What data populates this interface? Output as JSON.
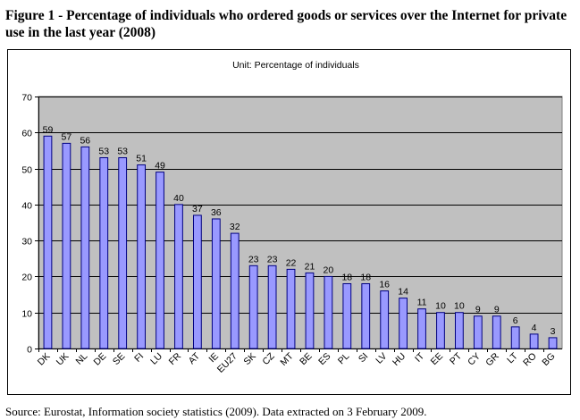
{
  "figure": {
    "title": "Figure 1 - Percentage of individuals who ordered goods or services over the Internet for private use in the last year (2008)",
    "source": "Source: Eurostat, Information society statistics (2009). Data extracted on 3 February 2009."
  },
  "chart_data": {
    "type": "bar",
    "subtitle": "Unit: Percentage of individuals",
    "categories": [
      "DK",
      "UK",
      "NL",
      "DE",
      "SE",
      "FI",
      "LU",
      "FR",
      "AT",
      "IE",
      "EU27",
      "SK",
      "CZ",
      "MT",
      "BE",
      "ES",
      "PL",
      "SI",
      "LV",
      "HU",
      "IT",
      "EE",
      "PT",
      "CY",
      "GR",
      "LT",
      "RO",
      "BG"
    ],
    "values": [
      59,
      57,
      56,
      53,
      53,
      51,
      49,
      40,
      37,
      36,
      32,
      23,
      23,
      22,
      21,
      20,
      18,
      18,
      16,
      14,
      11,
      10,
      10,
      9,
      9,
      6,
      4,
      3
    ],
    "data_labels": [
      "59",
      "57",
      "56",
      "53",
      "53",
      "51",
      "49",
      "40",
      "37",
      "36",
      "32",
      "23",
      "23",
      "22",
      "21",
      "20",
      "18",
      "18",
      "16",
      "14",
      "11",
      "10",
      "10",
      "9",
      "9",
      "6",
      "4",
      "3"
    ],
    "ylim": [
      0,
      70
    ],
    "yticks": [
      "0",
      "10",
      "20",
      "30",
      "40",
      "50",
      "60",
      "70"
    ],
    "grid": true,
    "legend": "none",
    "colors": {
      "plot_bg": "#c0c0c0",
      "bar_fill": "#9999ff",
      "bar_stroke": "#000080",
      "gridline": "#000000"
    }
  }
}
